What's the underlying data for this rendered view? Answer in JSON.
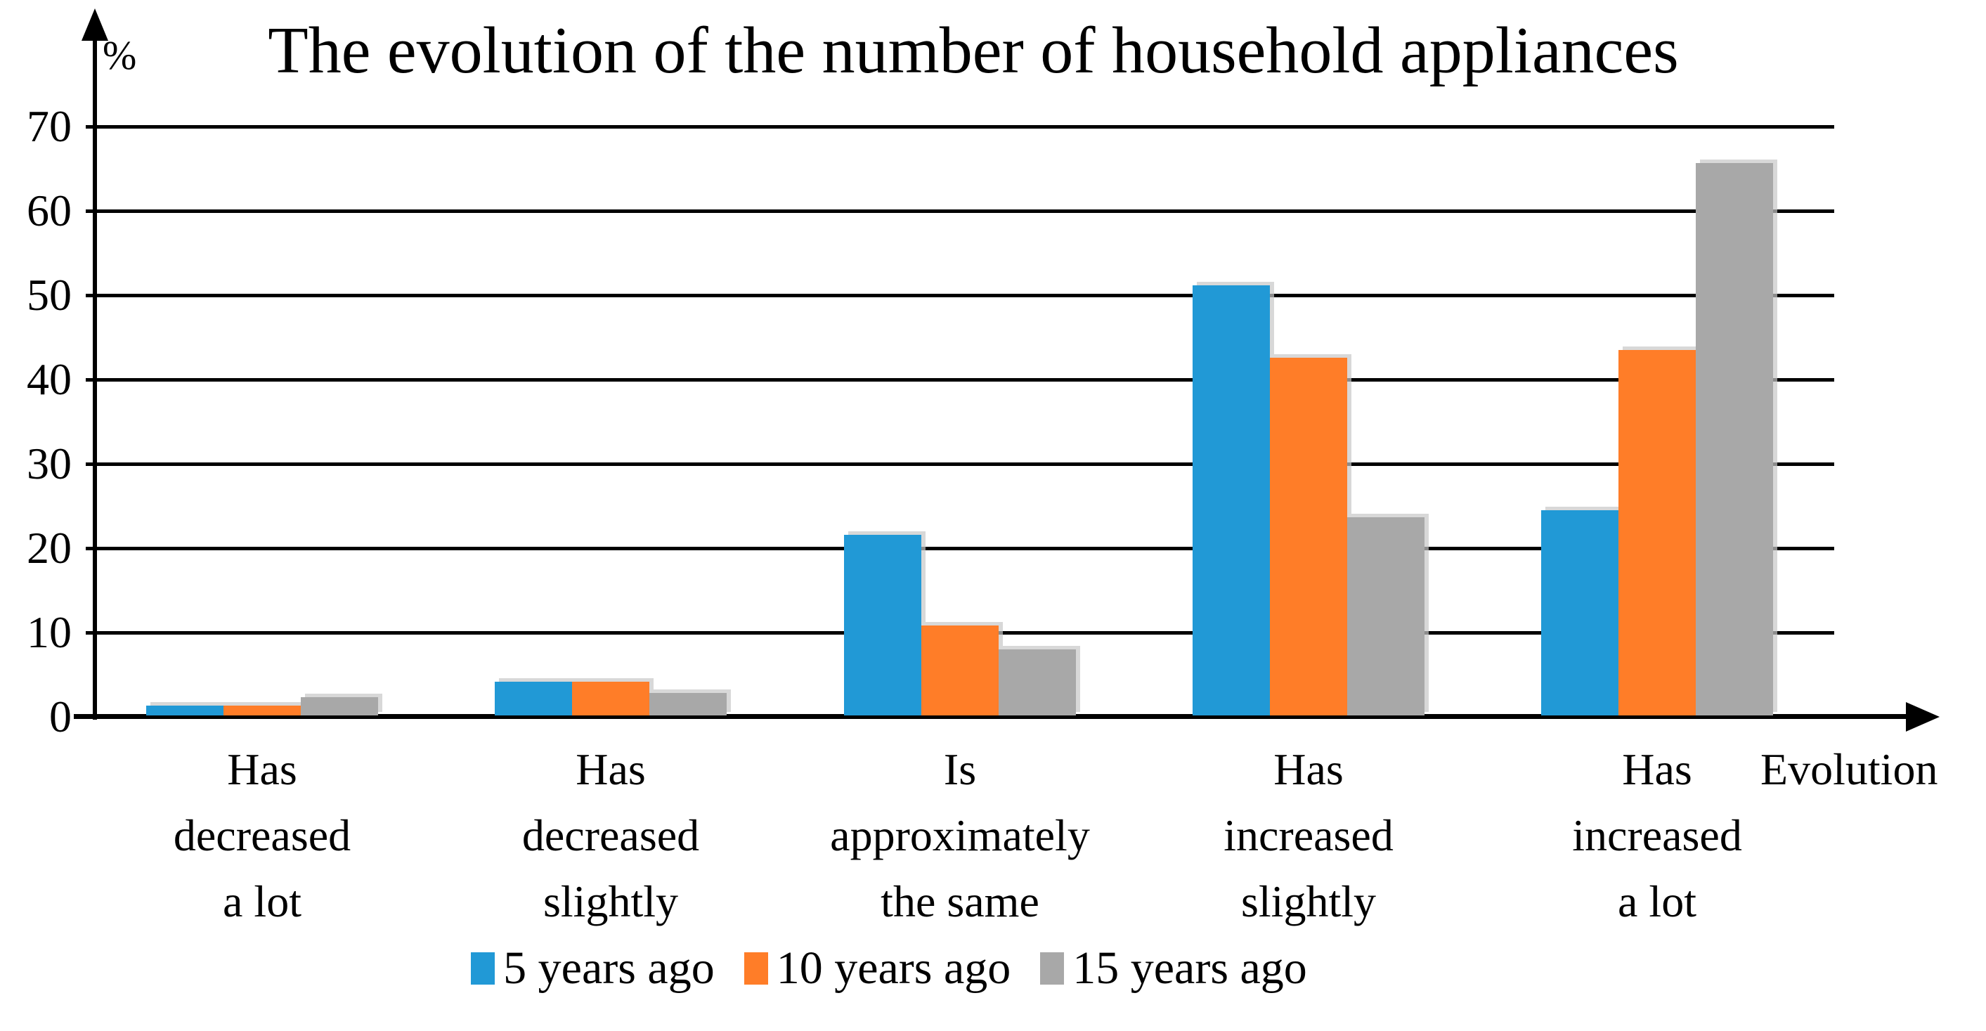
{
  "chart_data": {
    "type": "bar",
    "title": "The evolution of the number of household appliances",
    "ylabel": "%",
    "xlabel": "Evolution",
    "ylim": [
      0,
      70
    ],
    "yticks": [
      0,
      10,
      20,
      30,
      40,
      50,
      60,
      70
    ],
    "grid": "horizontal-only",
    "legend_position": "bottom",
    "categories": [
      "Has decreased a lot",
      "Has decreased slightly",
      "Is approximately the same",
      "Has increased slightly",
      "Has increased a lot"
    ],
    "categories_wrapped": [
      [
        "Has",
        "decreased",
        "a lot"
      ],
      [
        "Has",
        "decreased",
        "slightly"
      ],
      [
        "Is",
        "approximately",
        "the same"
      ],
      [
        "Has",
        "increased",
        "slightly"
      ],
      [
        "Has",
        "increased",
        "a lot"
      ]
    ],
    "series": [
      {
        "name": "5 years ago",
        "color": "#2199D6",
        "values": [
          1.2,
          4.0,
          21.4,
          51.0,
          24.3
        ]
      },
      {
        "name": "10 years ago",
        "color": "#FF7D28",
        "values": [
          1.2,
          4.0,
          10.7,
          42.4,
          43.3
        ]
      },
      {
        "name": "15 years ago",
        "color": "#A8A8A8",
        "values": [
          2.2,
          2.7,
          7.8,
          23.5,
          65.5
        ]
      }
    ],
    "colors": {
      "axis": "#000000",
      "gridline": "#000000",
      "background": "#FFFFFF"
    }
  }
}
